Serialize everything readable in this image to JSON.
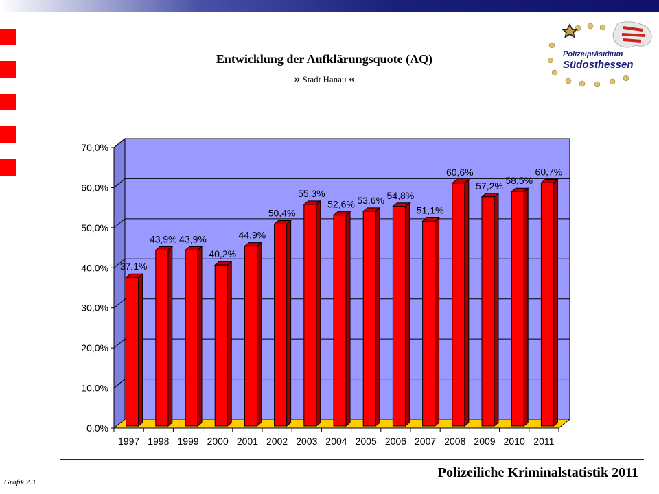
{
  "header": {
    "title": "Entwicklung der Aufklärungsquote (AQ)",
    "subtitle_open": "»",
    "subtitle_text": " Stadt Hanau ",
    "subtitle_close": "«"
  },
  "logo": {
    "line1": "Polizeipräsidium",
    "line2": "Südosthessen"
  },
  "footer": {
    "title": "Polizeiliche Kriminalstatistik 2011",
    "figure_label": "Grafik  2.3"
  },
  "colors": {
    "bar_front": "#ff0000",
    "bar_side": "#a00000",
    "bar_top": "#c40000",
    "back_wall": "#9999ff",
    "floor": "#ffcc00",
    "accent": "#1a1f7a"
  },
  "chart_data": {
    "type": "bar",
    "categories": [
      "1997",
      "1998",
      "1999",
      "2000",
      "2001",
      "2002",
      "2003",
      "2004",
      "2005",
      "2006",
      "2007",
      "2008",
      "2009",
      "2010",
      "2011"
    ],
    "values": [
      37.1,
      43.9,
      43.9,
      40.2,
      44.9,
      50.4,
      55.3,
      52.6,
      53.6,
      54.8,
      51.1,
      60.6,
      57.2,
      58.5,
      60.7
    ],
    "data_labels": [
      "37,1%",
      "43,9%",
      "43,9%",
      "40,2%",
      "44,9%",
      "50,4%",
      "55,3%",
      "52,6%",
      "53,6%",
      "54,8%",
      "51,1%",
      "60,6%",
      "57,2%",
      "58,5%",
      "60,7%"
    ],
    "yticks": [
      0,
      10,
      20,
      30,
      40,
      50,
      60,
      70
    ],
    "ytick_labels": [
      "0,0%",
      "10,0%",
      "20,0%",
      "30,0%",
      "40,0%",
      "50,0%",
      "60,0%",
      "70,0%"
    ],
    "ylim": [
      0,
      70
    ],
    "style": "3d",
    "grid": true,
    "legend": false
  }
}
